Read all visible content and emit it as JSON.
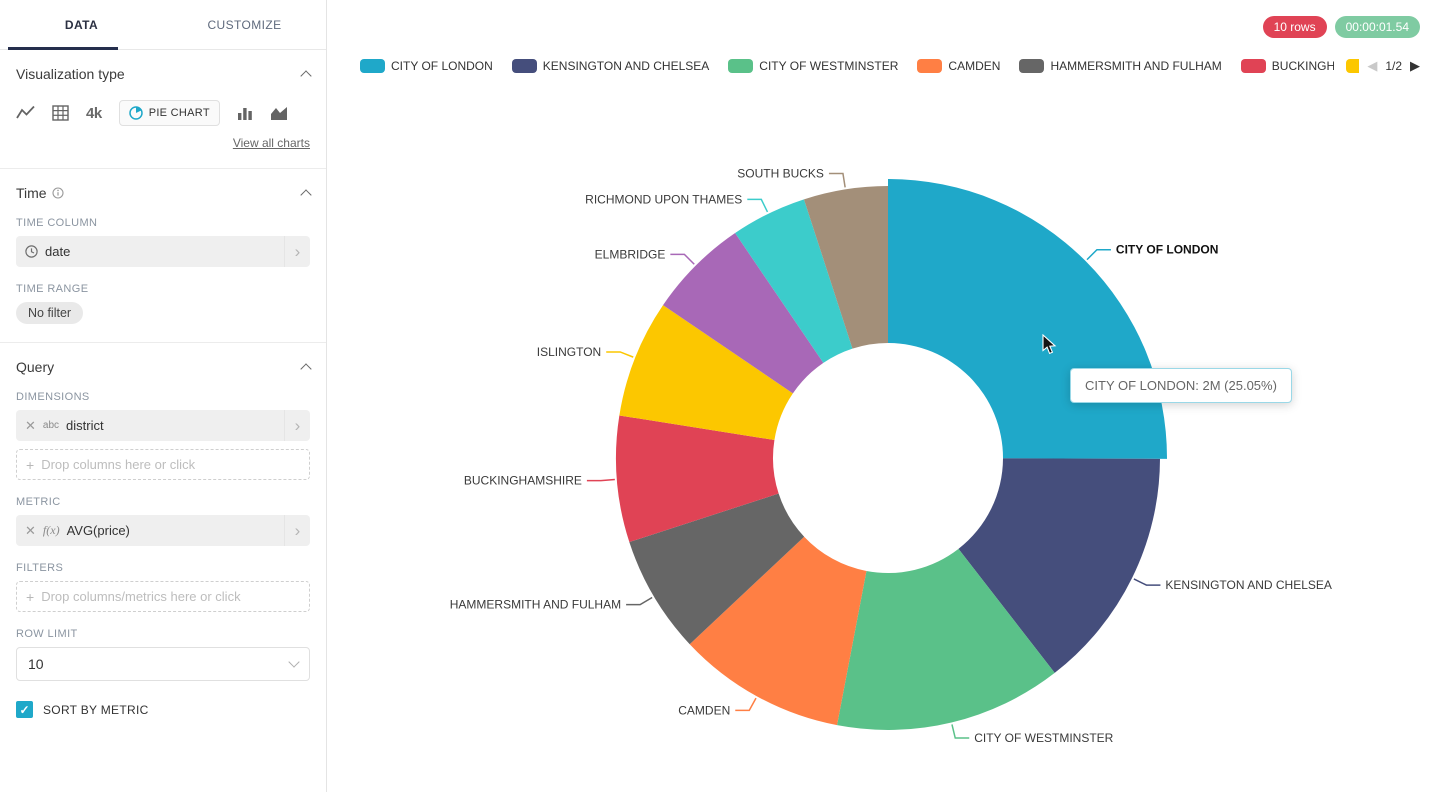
{
  "sidebar": {
    "tabs": {
      "data": "DATA",
      "customize": "CUSTOMIZE"
    },
    "viz_section": {
      "title": "Visualization type",
      "big_number_thumb": "4k",
      "selected_chart": "PIE CHART",
      "view_all": "View all charts"
    },
    "time_section": {
      "title": "Time",
      "column_label": "TIME COLUMN",
      "column_value": "date",
      "range_label": "TIME RANGE",
      "range_value": "No filter"
    },
    "query_section": {
      "title": "Query",
      "dimensions_label": "DIMENSIONS",
      "dimension_prefix": "abc",
      "dimension_value": "district",
      "dimensions_placeholder": "Drop columns here or click",
      "metric_label": "METRIC",
      "metric_prefix": "f(x)",
      "metric_value": "AVG(price)",
      "filters_label": "FILTERS",
      "filters_placeholder": "Drop columns/metrics here or click",
      "row_limit_label": "ROW LIMIT",
      "row_limit_value": "10",
      "sort_label": "SORT BY METRIC",
      "sort_checked": true
    }
  },
  "status": {
    "rows_badge": "10 rows",
    "rows_badge_color": "#E04355",
    "timer_badge": "00:00:01.54",
    "timer_badge_color": "#7FCBA2"
  },
  "legend": {
    "visible_count": 6,
    "truncated_swatch_color": "#FCC700",
    "page_label": "1/2"
  },
  "tooltip": {
    "text": "CITY OF LONDON: 2M (25.05%)"
  },
  "chart_data": {
    "type": "pie",
    "donut": true,
    "dimension": "district",
    "metric": "AVG(price)",
    "legend_position": "top",
    "direction": "clockwise",
    "start_angle_deg": 0,
    "categories": [
      "CITY OF LONDON",
      "KENSINGTON AND CHELSEA",
      "CITY OF WESTMINSTER",
      "CAMDEN",
      "HAMMERSMITH AND FULHAM",
      "BUCKINGHAMSHIRE",
      "ISLINGTON",
      "ELMBRIDGE",
      "RICHMOND UPON THAMES",
      "SOUTH BUCKS"
    ],
    "values_pct": [
      25.05,
      14.45,
      13.5,
      10.0,
      7.0,
      7.5,
      7.0,
      6.0,
      4.5,
      5.0
    ],
    "colors": [
      "#1FA8C9",
      "#454E7C",
      "#5AC189",
      "#FF7F44",
      "#666666",
      "#E04355",
      "#FCC700",
      "#A868B7",
      "#3CCCCB",
      "#A38F79"
    ],
    "hovered_slice": "CITY OF LONDON",
    "hovered_value_label": "2M"
  }
}
